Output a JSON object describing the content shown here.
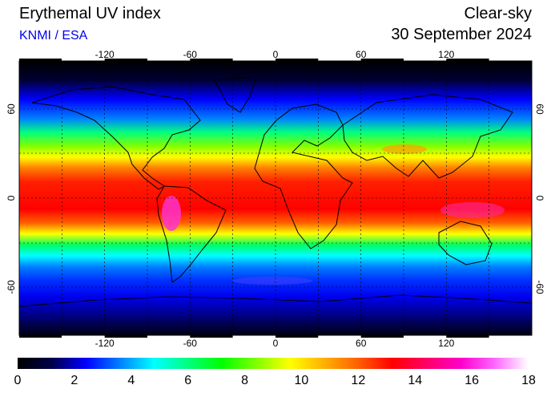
{
  "header": {
    "title": "Erythemal UV index",
    "subtitle": "KNMI / ESA",
    "mode": "Clear-sky",
    "date": "30 September 2024"
  },
  "map": {
    "longitude_ticks": [
      "-120",
      "-60",
      "0",
      "60",
      "120"
    ],
    "latitude_ticks": [
      "60",
      "0",
      "-60"
    ],
    "longitude_values": [
      -120,
      -60,
      0,
      60,
      120
    ],
    "latitude_values": [
      60,
      0,
      -60
    ]
  },
  "colorbar": {
    "min": 0,
    "max": 18,
    "tick_labels": [
      "0",
      "2",
      "4",
      "6",
      "8",
      "10",
      "12",
      "14",
      "16",
      "18"
    ],
    "colors": [
      "#000000",
      "#00004a",
      "#0000ff",
      "#0080ff",
      "#00ffff",
      "#00ff80",
      "#00ff00",
      "#80ff00",
      "#ffff00",
      "#ffb000",
      "#ff6000",
      "#ff0000",
      "#ff0066",
      "#ff00cc",
      "#ff66ff",
      "#ffffff"
    ]
  }
}
